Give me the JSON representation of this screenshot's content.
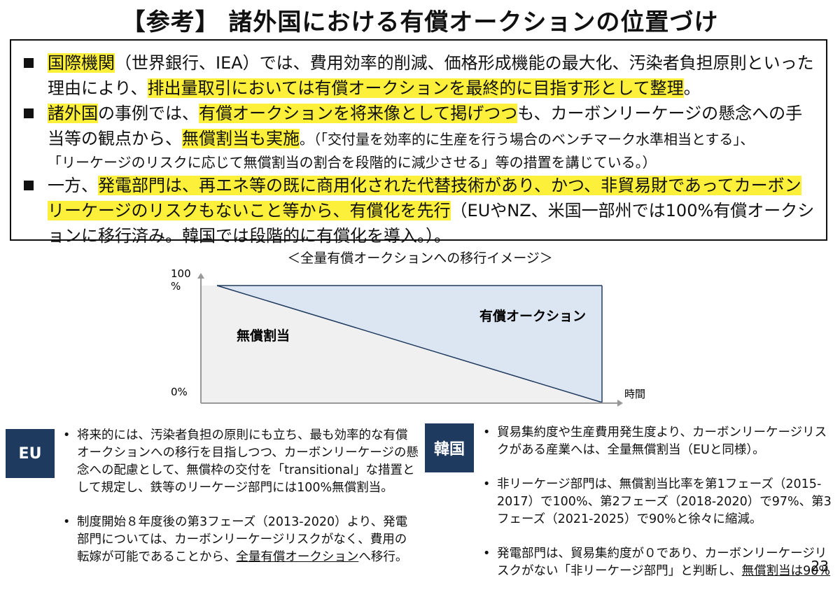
{
  "title": "【参考】 諸外国における有償オークションの位置づけ",
  "summary": {
    "p1": {
      "a": "国際機関",
      "b": "（世界銀行、IEA）では、費用効率的削減、価格形成機能の最大化、汚染者負担原則といった理由により、",
      "c": "排出量取引においては有償オークションを最終的に目指す形として整理",
      "d": "。"
    },
    "p2": {
      "a": "諸外国",
      "b": "の事例では、",
      "c": "有償オークションを将来像として掲げつつ",
      "d": "も、カーボンリーケージの懸念への手当等の観点から、",
      "e": "無償割当も実施",
      "f": "。（「交付量を効率的に生産を行う場合のベンチマーク水準相当とする」、",
      "g": "「リーケージのリスクに応じて無償割当の割合を段階的に減少させる」等の措置を講じている。）"
    },
    "p3": {
      "a": "一方、",
      "b": "発電部門は、再エネ等の既に商用化された代替技術があり、かつ、非貿易財であってカーボンリーケージのリスクもないこと等から、有償化を先行",
      "c": "（EUやNZ、米国一部州では100%有償オークションに移行済み。韓国では段階的に有償化を導入。）。"
    }
  },
  "chart_data": {
    "type": "area",
    "title": "＜全量有償オークションへの移行イメージ＞",
    "y_tick_top": "100\n%",
    "y_tick_top_line1": "100",
    "y_tick_top_line2": "%",
    "y_tick_bottom": "0%",
    "xlabel": "時間",
    "ylim": [
      0,
      100
    ],
    "x": [
      0,
      1
    ],
    "series": [
      {
        "name": "無償割当",
        "values": [
          100,
          0
        ]
      },
      {
        "name": "有償オークション",
        "values": [
          0,
          100
        ]
      }
    ],
    "colors": {
      "free": "#f0f0f0",
      "auction": "#dce6f2",
      "axis": "#999999",
      "line": "#1f3a5f"
    }
  },
  "eu": {
    "label": "EU",
    "b1": "将来的には、汚染者負担の原則にも立ち、最も効率的な有償オークションへの移行を目指しつつ、カーボンリーケージの懸念への配慮として、無償枠の交付を「transitional」な措置として規定し、鉄等のリーケージ部門には100%無償割当。",
    "b2a": "制度開始８年度後の第3フェーズ（2013-2020）より、発電部門については、カーボンリーケージリスクがなく、費用の転嫁が可能であることから、",
    "b2b": "全量有償オークション",
    "b2c": "へ移行。"
  },
  "korea": {
    "label": "韓国",
    "b1": "貿易集約度や生産費用発生度より、カーボンリーケージリスクがある産業へは、全量無償割当（EUと同様）。",
    "b2": "非リーケージ部門は、無償割当比率を第1フェーズ（2015-2017）で100%、第2フェーズ（2018-2020）で97%、第3フェーズ（2021-2025）で90%と徐々に縮減。",
    "b3a": "発電部門は、貿易集約度が０であり、カーボンリーケージリスクがない「非リーケージ部門」と判断し、",
    "b3b": "無償割当は90%"
  },
  "page_number": "23",
  "colors": {
    "highlight": "#fdf03a",
    "label_bg": "#1f3a5f"
  }
}
